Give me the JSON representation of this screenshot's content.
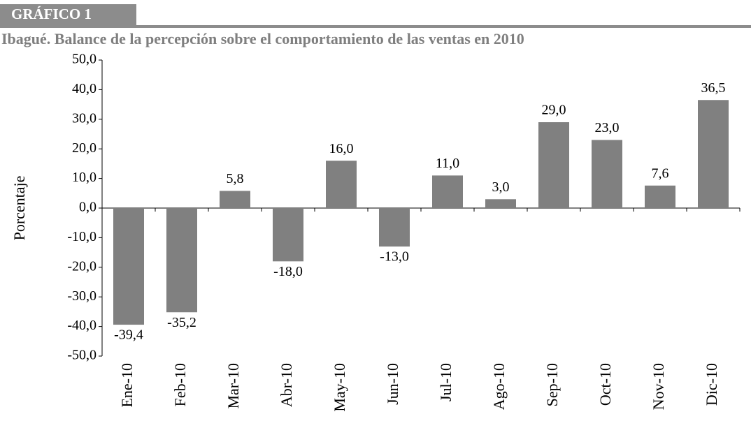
{
  "chart_data": {
    "type": "bar",
    "figure_label": "GRÁFICO 1",
    "title": "Ibagué. Balance de la percepción sobre el comportamiento de las ventas en 2010",
    "y_label": "Porcentaje",
    "categories": [
      "Ene-10",
      "Feb-10",
      "Mar-10",
      "Abr-10",
      "May-10",
      "Jun-10",
      "Jul-10",
      "Ago-10",
      "Sep-10",
      "Oct-10",
      "Nov-10",
      "Dic-10"
    ],
    "values": [
      -39.4,
      -35.2,
      5.8,
      -18.0,
      16.0,
      -13.0,
      11.0,
      3.0,
      29.0,
      23.0,
      7.6,
      36.5
    ],
    "value_labels": [
      "-39,4",
      "-35,2",
      "5,8",
      "-18,0",
      "16,0",
      "-13,0",
      "11,0",
      "3,0",
      "29,0",
      "23,0",
      "7,6",
      "36,5"
    ],
    "color": "#808080",
    "ylim": [
      -50,
      50
    ],
    "yticks": [
      {
        "value": 50,
        "label": "50,0"
      },
      {
        "value": 40,
        "label": "40,0"
      },
      {
        "value": 30,
        "label": "30,0"
      },
      {
        "value": 20,
        "label": "20,0"
      },
      {
        "value": 10,
        "label": "10,0"
      },
      {
        "value": 0,
        "label": "0,0"
      },
      {
        "value": -10,
        "label": "-10,0"
      },
      {
        "value": -20,
        "label": "-20,0"
      },
      {
        "value": -30,
        "label": "-30,0"
      },
      {
        "value": -40,
        "label": "-40,0"
      },
      {
        "value": -50,
        "label": "-50,0"
      }
    ],
    "grid": false
  }
}
